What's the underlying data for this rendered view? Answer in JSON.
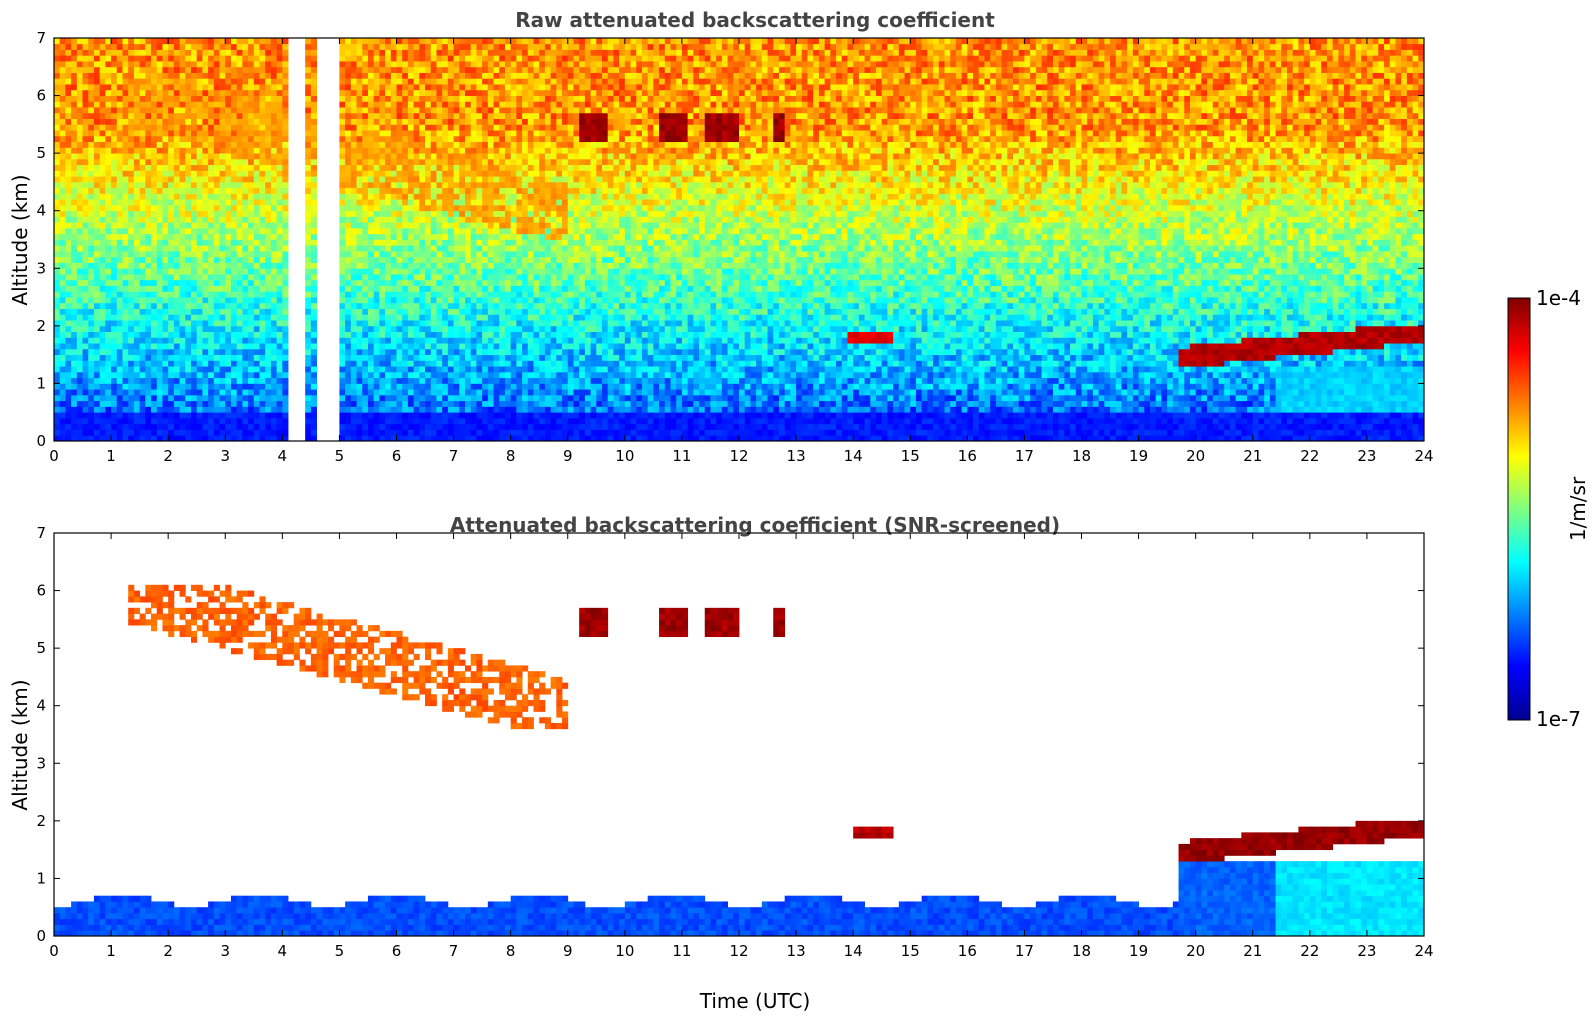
{
  "colors": {
    "jet": [
      "#00008f",
      "#0000ff",
      "#0080ff",
      "#00ffff",
      "#80ff80",
      "#ffff00",
      "#ff8000",
      "#ff0000",
      "#800000"
    ],
    "cloud_core": "#000000"
  },
  "colorbar": {
    "max_label": "1e-4",
    "min_label": "1e-7",
    "unit_label": "1/m/sr",
    "scale": "log"
  },
  "chart_data": [
    {
      "type": "heatmap",
      "title": "Raw attenuated backscattering coefficient",
      "xlabel": "",
      "ylabel": "Altitude (km)",
      "xlim": [
        0,
        24
      ],
      "ylim": [
        0,
        7
      ],
      "xticks": [
        "0",
        "1",
        "2",
        "3",
        "4",
        "5",
        "6",
        "7",
        "8",
        "9",
        "10",
        "11",
        "12",
        "13",
        "14",
        "15",
        "16",
        "17",
        "18",
        "19",
        "20",
        "21",
        "22",
        "23",
        "24"
      ],
      "yticks": [
        "0",
        "1",
        "2",
        "3",
        "4",
        "5",
        "6",
        "7"
      ],
      "features": [
        {
          "name": "boundary-layer aerosol",
          "t_range": [
            0,
            24
          ],
          "alt_range": [
            0,
            0.5
          ],
          "level": 0.15
        },
        {
          "name": "cirrus descending",
          "t_range": [
            1.3,
            9.0
          ],
          "alt_range": [
            3.5,
            7.0
          ],
          "level": 0.72
        },
        {
          "name": "mid-level cloud patches",
          "t_range": [
            9.2,
            12.8
          ],
          "alt_range": [
            5.2,
            5.7
          ],
          "level": 0.97
        },
        {
          "name": "low cloud 14h",
          "t_range": [
            13.9,
            14.7
          ],
          "alt_range": [
            1.7,
            1.85
          ],
          "level": 0.9
        },
        {
          "name": "stratocumulus deck",
          "t_range": [
            19.7,
            24.0
          ],
          "alt_range": [
            1.3,
            2.0
          ],
          "level": 0.95
        }
      ],
      "gaps_utc": [
        [
          4.1,
          4.35
        ],
        [
          4.65,
          4.75
        ],
        [
          4.85,
          5.0
        ]
      ]
    },
    {
      "type": "heatmap",
      "title": "Attenuated backscattering coefficient (SNR-screened)",
      "xlabel": "Time (UTC)",
      "ylabel": "Altitude (km)",
      "xlim": [
        0,
        24
      ],
      "ylim": [
        0,
        7
      ],
      "xticks": [
        "0",
        "1",
        "2",
        "3",
        "4",
        "5",
        "6",
        "7",
        "8",
        "9",
        "10",
        "11",
        "12",
        "13",
        "14",
        "15",
        "16",
        "17",
        "18",
        "19",
        "20",
        "21",
        "22",
        "23",
        "24"
      ],
      "yticks": [
        "0",
        "1",
        "2",
        "3",
        "4",
        "5",
        "6",
        "7"
      ],
      "features": [
        {
          "name": "boundary-layer aerosol",
          "t_range": [
            0,
            24
          ],
          "alt_range": [
            0,
            0.9
          ],
          "level": 0.2
        },
        {
          "name": "cirrus descending",
          "t_range": [
            1.3,
            9.0
          ],
          "alt_range": [
            3.6,
            6.1
          ],
          "level": 0.78
        },
        {
          "name": "mid-level cloud patches",
          "t_range": [
            9.2,
            12.9
          ],
          "alt_range": [
            5.2,
            5.7
          ],
          "level": 0.97
        },
        {
          "name": "low cloud 14h",
          "t_range": [
            14.0,
            14.7
          ],
          "alt_range": [
            1.7,
            1.9
          ],
          "level": 0.95
        },
        {
          "name": "stratocumulus deck",
          "t_range": [
            19.7,
            24.0
          ],
          "alt_range": [
            1.3,
            2.0
          ],
          "level": 0.98
        }
      ]
    }
  ]
}
